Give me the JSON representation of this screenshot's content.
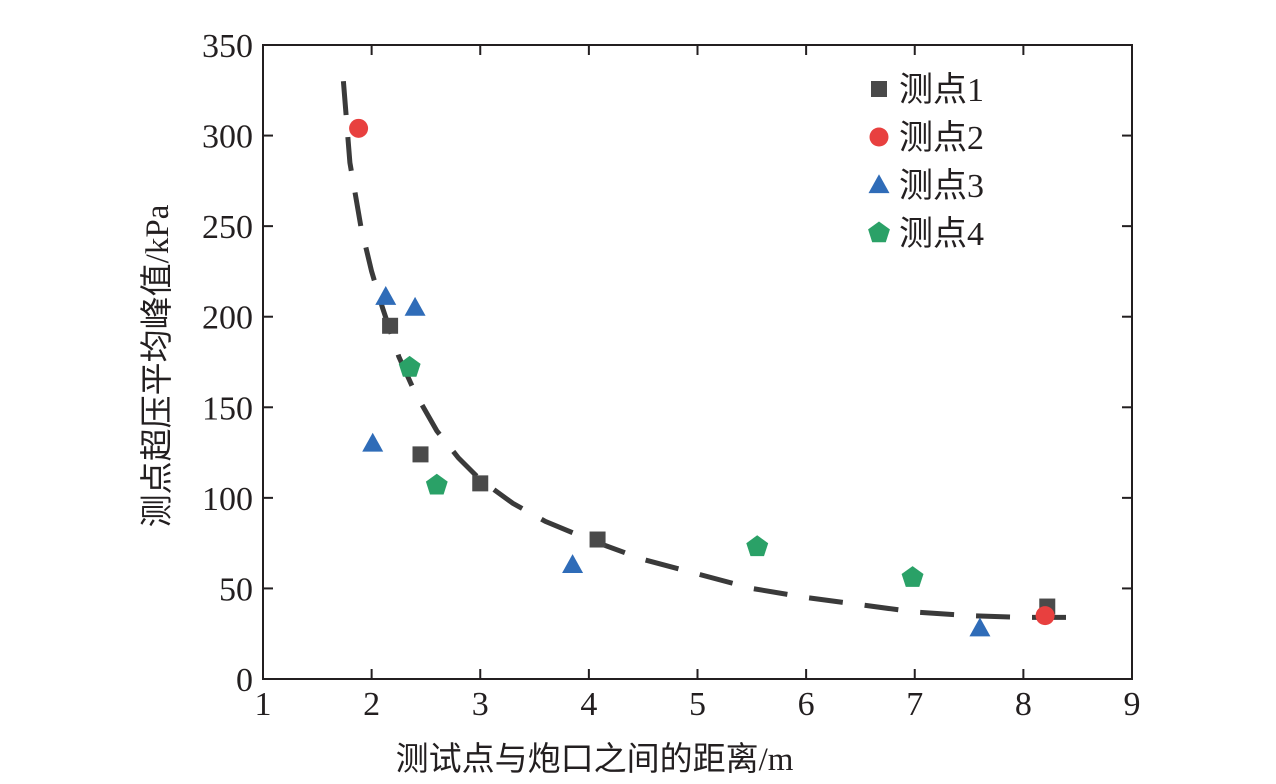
{
  "chart_data": {
    "type": "scatter",
    "xlabel": "测试点与炮口之间的距离/m",
    "ylabel": "测点超压平均峰值/kPa",
    "xlim": [
      1,
      9
    ],
    "ylim": [
      0,
      350
    ],
    "x_ticks": [
      "1",
      "2",
      "3",
      "4",
      "5",
      "6",
      "7",
      "8",
      "9"
    ],
    "y_ticks": [
      "0",
      "50",
      "100",
      "150",
      "200",
      "250",
      "300",
      "350"
    ],
    "grid": false,
    "legend_position": "top-right",
    "series": [
      {
        "name": "测点1",
        "marker": "square",
        "color": "#4a4a4a",
        "points": [
          [
            2.17,
            195
          ],
          [
            2.45,
            124
          ],
          [
            3.0,
            108
          ],
          [
            4.08,
            77
          ],
          [
            8.22,
            40
          ]
        ]
      },
      {
        "name": "测点2",
        "marker": "circle",
        "color": "#e8403f",
        "points": [
          [
            1.88,
            304
          ],
          [
            8.2,
            35
          ]
        ]
      },
      {
        "name": "测点3",
        "marker": "triangle",
        "color": "#2f6cb8",
        "points": [
          [
            2.13,
            211
          ],
          [
            2.4,
            205
          ],
          [
            2.01,
            130
          ],
          [
            3.85,
            63
          ],
          [
            7.6,
            28
          ]
        ]
      },
      {
        "name": "测点4",
        "marker": "pentagon",
        "color": "#2aa167",
        "points": [
          [
            2.35,
            172
          ],
          [
            2.6,
            107
          ],
          [
            5.55,
            73
          ],
          [
            6.98,
            56
          ]
        ]
      }
    ],
    "fit_curve": {
      "style": "dashed",
      "color": "#3a3a3a",
      "points": [
        [
          1.74,
          330
        ],
        [
          1.8,
          285
        ],
        [
          1.9,
          250
        ],
        [
          2.0,
          225
        ],
        [
          2.1,
          205
        ],
        [
          2.25,
          178
        ],
        [
          2.4,
          158
        ],
        [
          2.6,
          137
        ],
        [
          2.8,
          122
        ],
        [
          3.0,
          110
        ],
        [
          3.3,
          97
        ],
        [
          3.6,
          87
        ],
        [
          4.0,
          77
        ],
        [
          4.5,
          66
        ],
        [
          5.0,
          58
        ],
        [
          5.5,
          50
        ],
        [
          6.0,
          45
        ],
        [
          6.5,
          41
        ],
        [
          7.0,
          37
        ],
        [
          7.5,
          35
        ],
        [
          8.0,
          34
        ],
        [
          8.5,
          34
        ]
      ]
    }
  }
}
